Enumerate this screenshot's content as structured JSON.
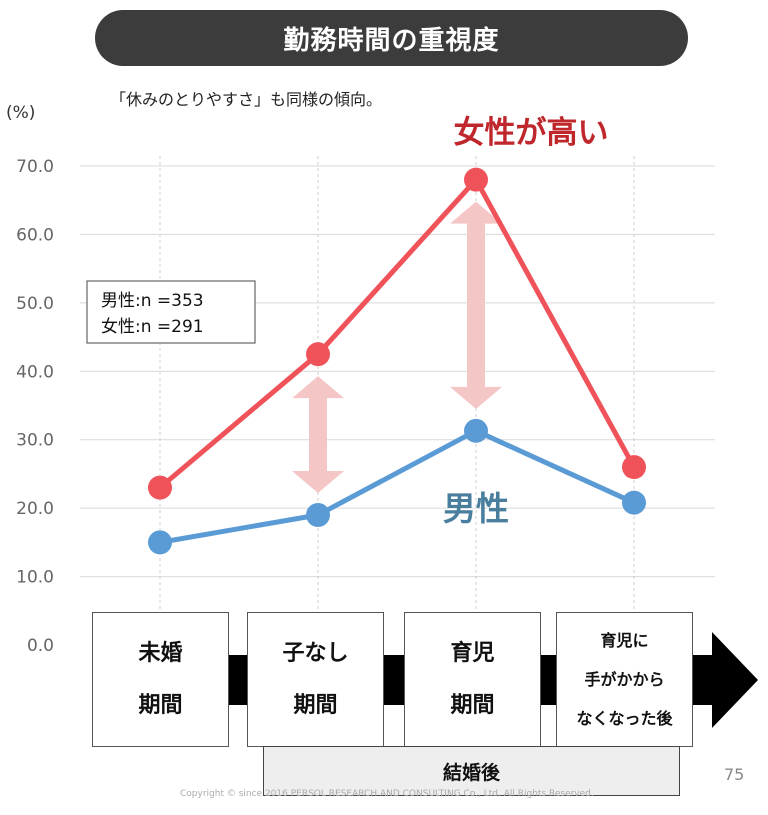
{
  "title": "勤務時間の重視度",
  "subtitle": "「休みのとりやすさ」も同様の傾向。",
  "page_number": "75",
  "copyright": "Copyright © since 2016 PERSOL RESEARCH AND CONSULTING Co., Ltd. All Rights Reserved.",
  "timeline_footer": "結婚後",
  "chart_data": {
    "type": "line",
    "ylabel": "(%)",
    "ylim": [
      0,
      70
    ],
    "yticks": [
      "0.0",
      "10.0",
      "20.0",
      "30.0",
      "40.0",
      "50.0",
      "60.0",
      "70.0"
    ],
    "categories": [
      [
        "未婚",
        "期間"
      ],
      [
        "子なし",
        "期間"
      ],
      [
        "育児",
        "期間"
      ],
      [
        "育児に",
        "手がかから",
        "なくなった後"
      ]
    ],
    "series": [
      {
        "name": "女性",
        "color": "#f0525a",
        "values": [
          23.0,
          42.5,
          68.0,
          26.0
        ]
      },
      {
        "name": "男性",
        "color": "#5b9bd5",
        "values": [
          15.0,
          19.0,
          31.3,
          20.8
        ]
      }
    ],
    "annotations": {
      "female_label": "女性が高い",
      "male_label": "男性",
      "sample_sizes": [
        "男性:n =353",
        "女性:n =291"
      ]
    },
    "grid": true,
    "colors": {
      "female_label": "#c0272d",
      "male_label": "#4a7e9e",
      "gap_arrow": "#f4c6c6"
    }
  }
}
